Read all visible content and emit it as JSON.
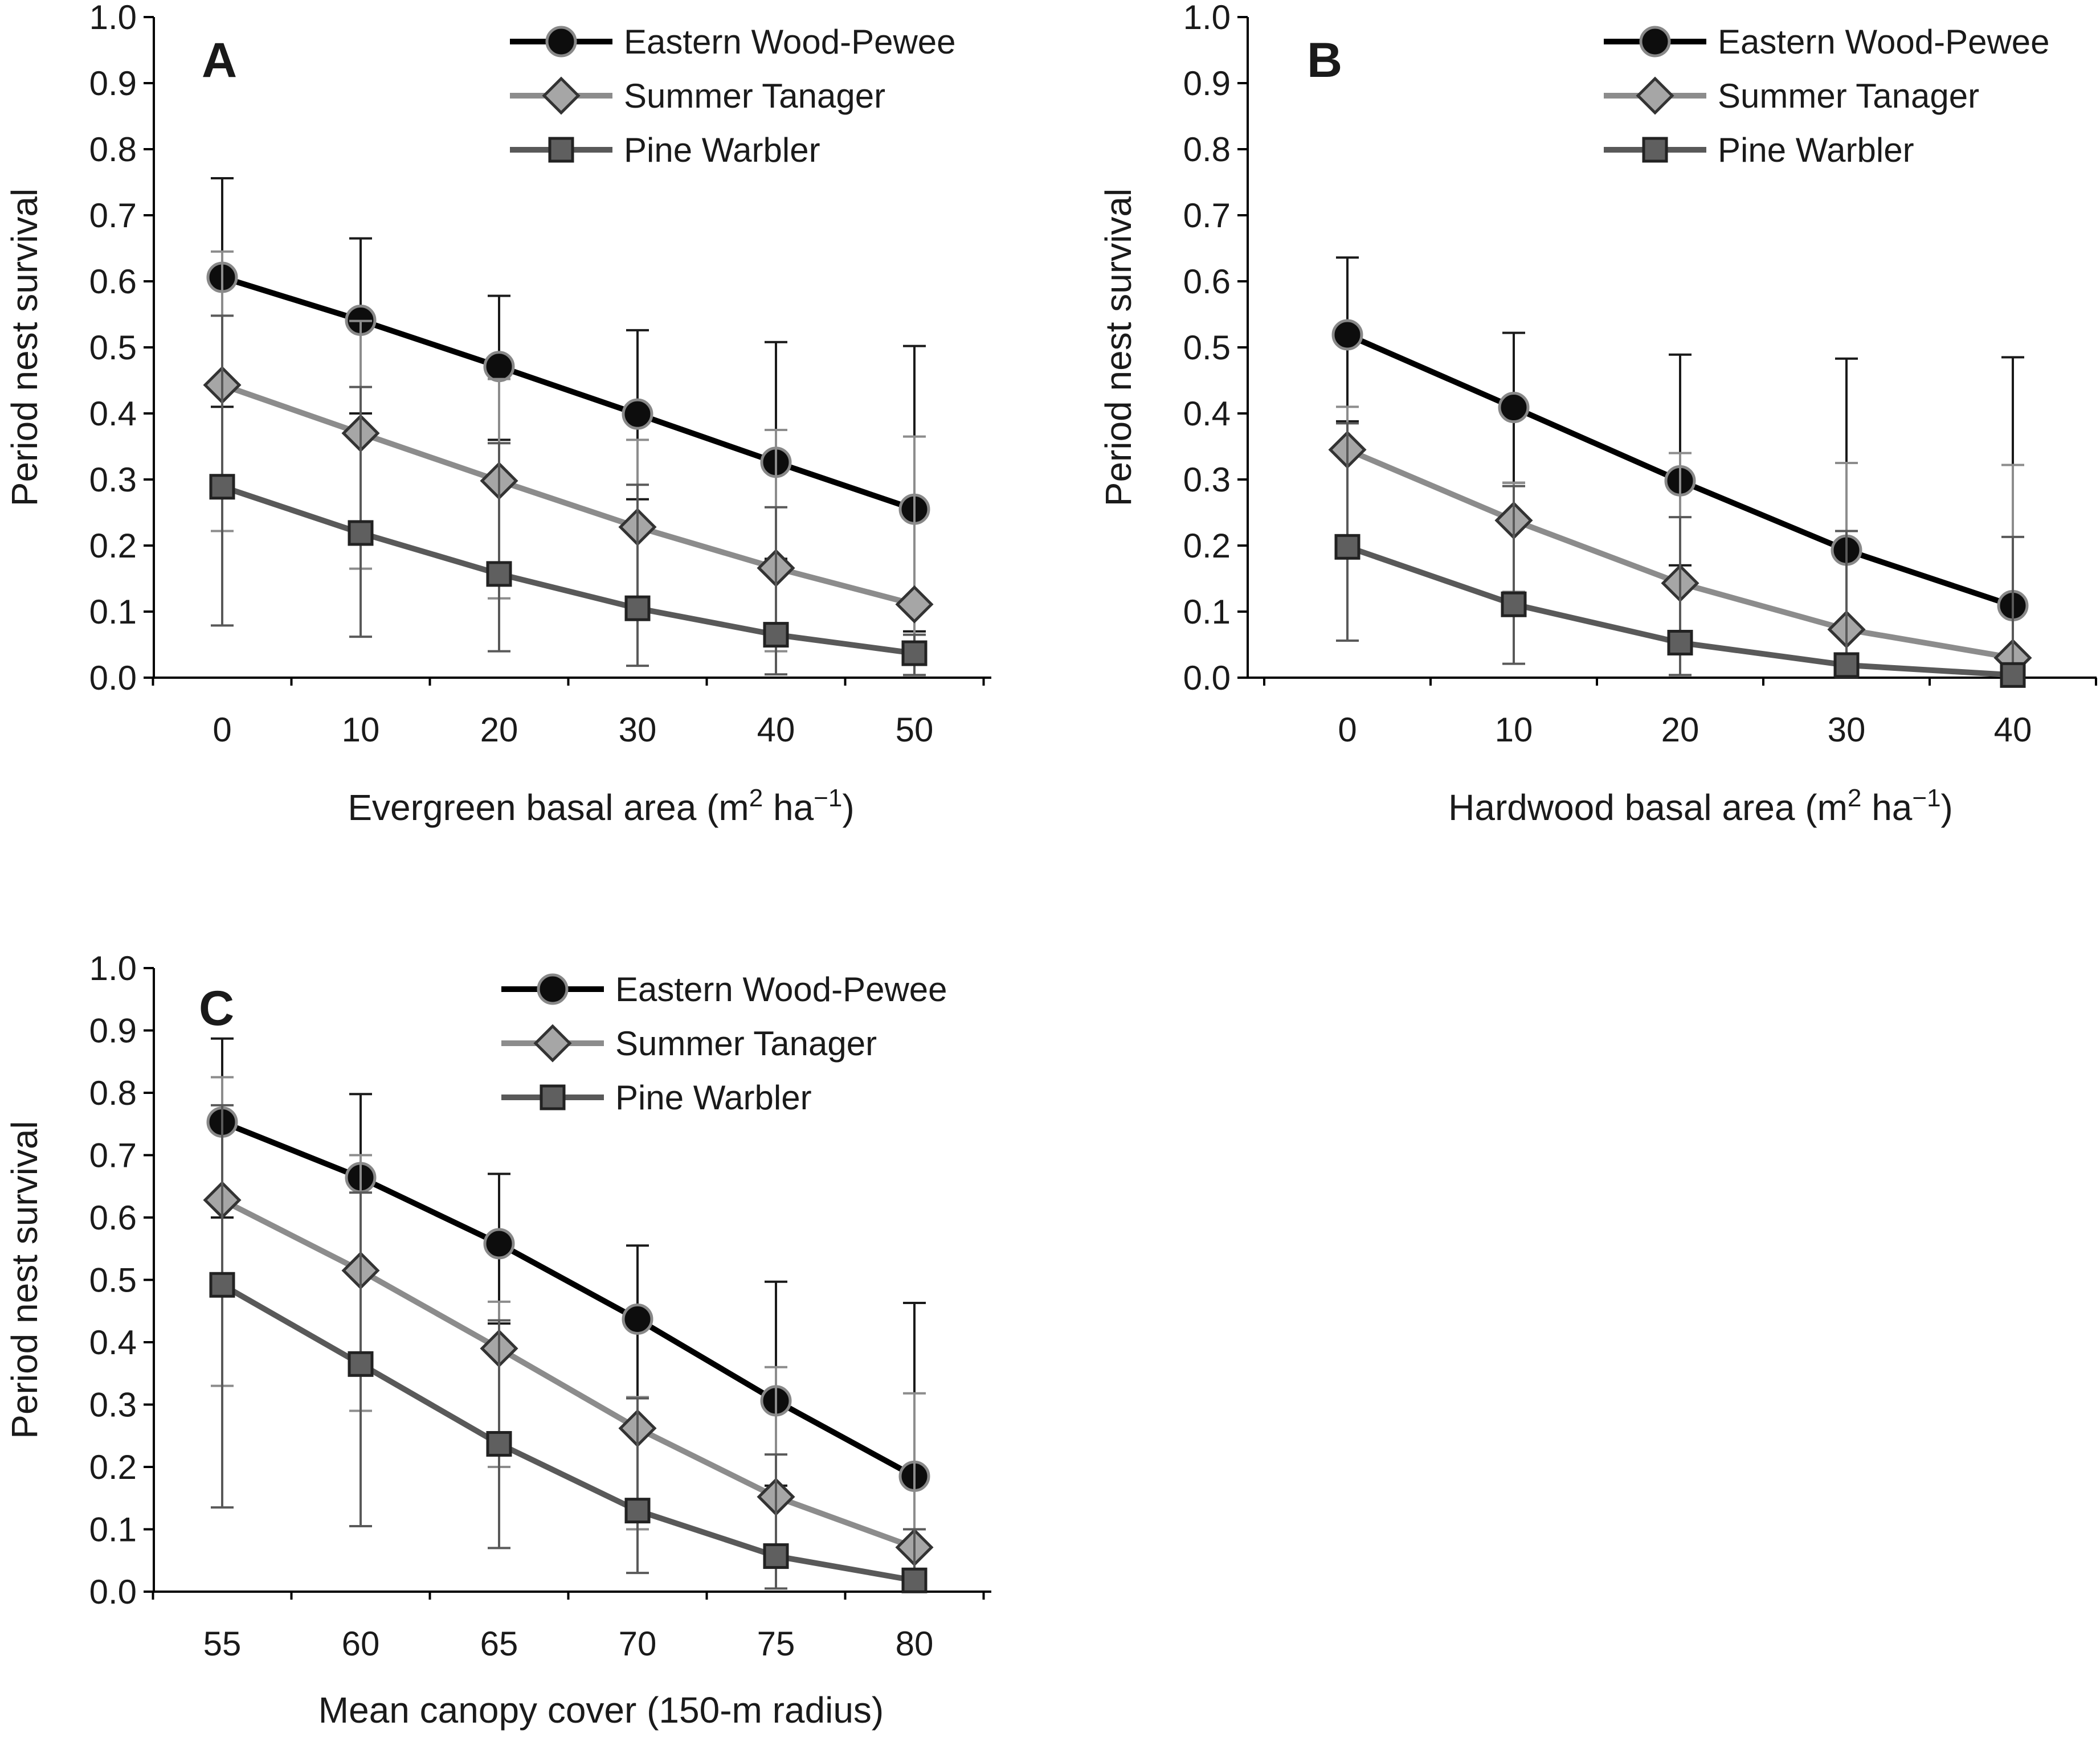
{
  "figure": {
    "series_styles": [
      {
        "color": "#000000",
        "fill": "#0d0d0d",
        "marker": "circle"
      },
      {
        "color": "#8c8c8c",
        "fill": "#a6a6a6",
        "marker": "diamond"
      },
      {
        "color": "#595959",
        "fill": "#5f5f5f",
        "marker": "square"
      }
    ]
  },
  "chart_data": [
    {
      "panel": "A",
      "type": "line",
      "xlabel_main": "Evergreen basal area (m",
      "xlabel_sup1": "2",
      "xlabel_mid": " ha",
      "xlabel_sup2": "−1",
      "xlabel_end": ")",
      "ylabel": "Period nest survival",
      "ylim": [
        0,
        1
      ],
      "yticks": [
        "0.0",
        "0.1",
        "0.2",
        "0.3",
        "0.4",
        "0.5",
        "0.6",
        "0.7",
        "0.8",
        "0.9",
        "1.0"
      ],
      "x": [
        0,
        10,
        20,
        30,
        40,
        50
      ],
      "xtick_labels": [
        "0",
        "10",
        "20",
        "30",
        "40",
        "50"
      ],
      "legend_placement": "top-right",
      "grid": false,
      "series": [
        {
          "name": "Eastern Wood-Pewee",
          "values": [
            0.606,
            0.541,
            0.471,
            0.399,
            0.326,
            0.255
          ],
          "upper": [
            0.756,
            0.665,
            0.578,
            0.526,
            0.508,
            0.502
          ],
          "lower": [
            0.41,
            0.4,
            0.36,
            0.27,
            0.18,
            0.07
          ]
        },
        {
          "name": "Summer Tanager",
          "values": [
            0.443,
            0.37,
            0.298,
            0.228,
            0.166,
            0.111
          ],
          "upper": [
            0.645,
            0.54,
            0.452,
            0.36,
            0.375,
            0.365
          ],
          "lower": [
            0.222,
            0.165,
            0.12,
            0.09,
            0.04,
            0.02
          ]
        },
        {
          "name": "Pine Warbler",
          "values": [
            0.289,
            0.219,
            0.157,
            0.105,
            0.065,
            0.037
          ],
          "upper": [
            0.548,
            0.44,
            0.355,
            0.292,
            0.258,
            0.065
          ],
          "lower": [
            0.079,
            0.062,
            0.04,
            0.018,
            0.005,
            0.004
          ]
        }
      ]
    },
    {
      "panel": "B",
      "type": "line",
      "xlabel_main": "Hardwood basal area (m",
      "xlabel_sup1": "2",
      "xlabel_mid": " ha",
      "xlabel_sup2": "−1",
      "xlabel_end": ")",
      "ylabel": "Period nest survival",
      "ylim": [
        0,
        1
      ],
      "yticks": [
        "0.0",
        "0.1",
        "0.2",
        "0.3",
        "0.4",
        "0.5",
        "0.6",
        "0.7",
        "0.8",
        "0.9",
        "1.0"
      ],
      "x": [
        0,
        10,
        20,
        30,
        40
      ],
      "xtick_labels": [
        "0",
        "10",
        "20",
        "30",
        "40"
      ],
      "legend_placement": "top-right",
      "grid": false,
      "series": [
        {
          "name": "Eastern Wood-Pewee",
          "values": [
            0.519,
            0.409,
            0.298,
            0.193,
            0.109
          ],
          "upper": [
            0.636,
            0.522,
            0.489,
            0.483,
            0.485
          ],
          "lower": [
            0.388,
            0.295,
            0.17,
            0.08,
            0.02
          ]
        },
        {
          "name": "Summer Tanager",
          "values": [
            0.345,
            0.238,
            0.143,
            0.073,
            0.03
          ],
          "upper": [
            0.41,
            0.295,
            0.34,
            0.325,
            0.322
          ],
          "lower": [
            0.21,
            0.13,
            0.05,
            0.01,
            0.002
          ]
        },
        {
          "name": "Pine Warbler",
          "values": [
            0.198,
            0.111,
            0.053,
            0.019,
            0.004
          ],
          "upper": [
            0.385,
            0.29,
            0.243,
            0.222,
            0.213
          ],
          "lower": [
            0.056,
            0.021,
            0.004,
            0.001,
            0.0
          ]
        }
      ]
    },
    {
      "panel": "C",
      "type": "line",
      "xlabel_main": "Mean canopy cover (150-m radius)",
      "xlabel_sup1": "",
      "xlabel_mid": "",
      "xlabel_sup2": "",
      "xlabel_end": "",
      "ylabel": "Period nest survival",
      "ylim": [
        0,
        1
      ],
      "yticks": [
        "0.0",
        "0.1",
        "0.2",
        "0.3",
        "0.4",
        "0.5",
        "0.6",
        "0.7",
        "0.8",
        "0.9",
        "1.0"
      ],
      "x": [
        55,
        60,
        65,
        70,
        75,
        80
      ],
      "xtick_labels": [
        "55",
        "60",
        "65",
        "70",
        "75",
        "80"
      ],
      "legend_placement": "top-right",
      "grid": false,
      "series": [
        {
          "name": "Eastern Wood-Pewee",
          "values": [
            0.753,
            0.664,
            0.558,
            0.437,
            0.306,
            0.185
          ],
          "upper": [
            0.887,
            0.798,
            0.67,
            0.555,
            0.497,
            0.463
          ],
          "lower": [
            0.6,
            0.52,
            0.43,
            0.31,
            0.17,
            0.07
          ]
        },
        {
          "name": "Summer Tanager",
          "values": [
            0.628,
            0.515,
            0.39,
            0.262,
            0.152,
            0.071
          ],
          "upper": [
            0.825,
            0.7,
            0.465,
            0.312,
            0.36,
            0.318
          ],
          "lower": [
            0.33,
            0.29,
            0.2,
            0.1,
            0.04,
            0.01
          ]
        },
        {
          "name": "Pine Warbler",
          "values": [
            0.492,
            0.365,
            0.237,
            0.13,
            0.057,
            0.018
          ],
          "upper": [
            0.78,
            0.64,
            0.435,
            0.31,
            0.22,
            0.1
          ],
          "lower": [
            0.135,
            0.105,
            0.07,
            0.03,
            0.005,
            0.0
          ]
        }
      ]
    }
  ]
}
